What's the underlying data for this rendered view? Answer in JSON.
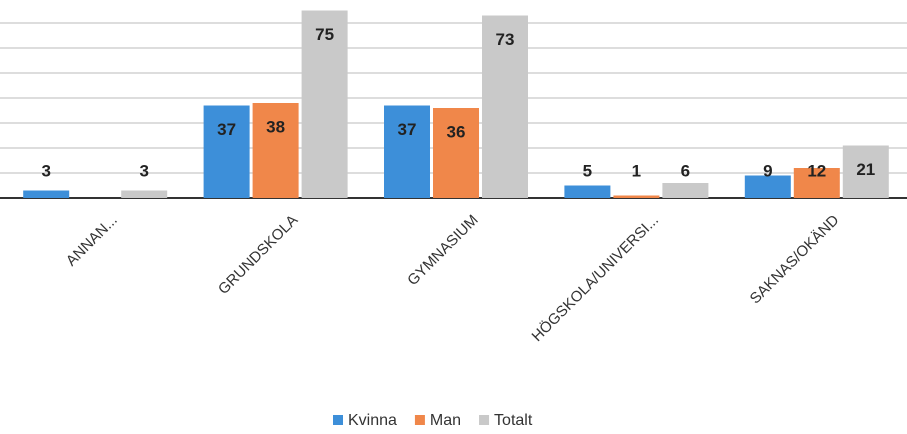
{
  "chart_data": {
    "type": "bar",
    "categories": [
      "ANNAN...",
      "GRUNDSKOLA",
      "GYMNASIUM",
      "HÖGSKOLA/UNIVERSI...",
      "SAKNAS/OKÄND"
    ],
    "series": [
      {
        "name": "Kvinna",
        "color": "#3d8fd9",
        "values": [
          3,
          37,
          37,
          5,
          9
        ]
      },
      {
        "name": "Man",
        "color": "#f0874a",
        "values": [
          null,
          38,
          36,
          1,
          12
        ]
      },
      {
        "name": "Totalt",
        "color": "#c9c9c9",
        "values": [
          3,
          75,
          73,
          6,
          21
        ]
      }
    ],
    "ylim": [
      0,
      76
    ],
    "yticks": [
      0,
      10,
      20,
      30,
      40,
      50,
      60,
      70
    ],
    "grid": true
  }
}
